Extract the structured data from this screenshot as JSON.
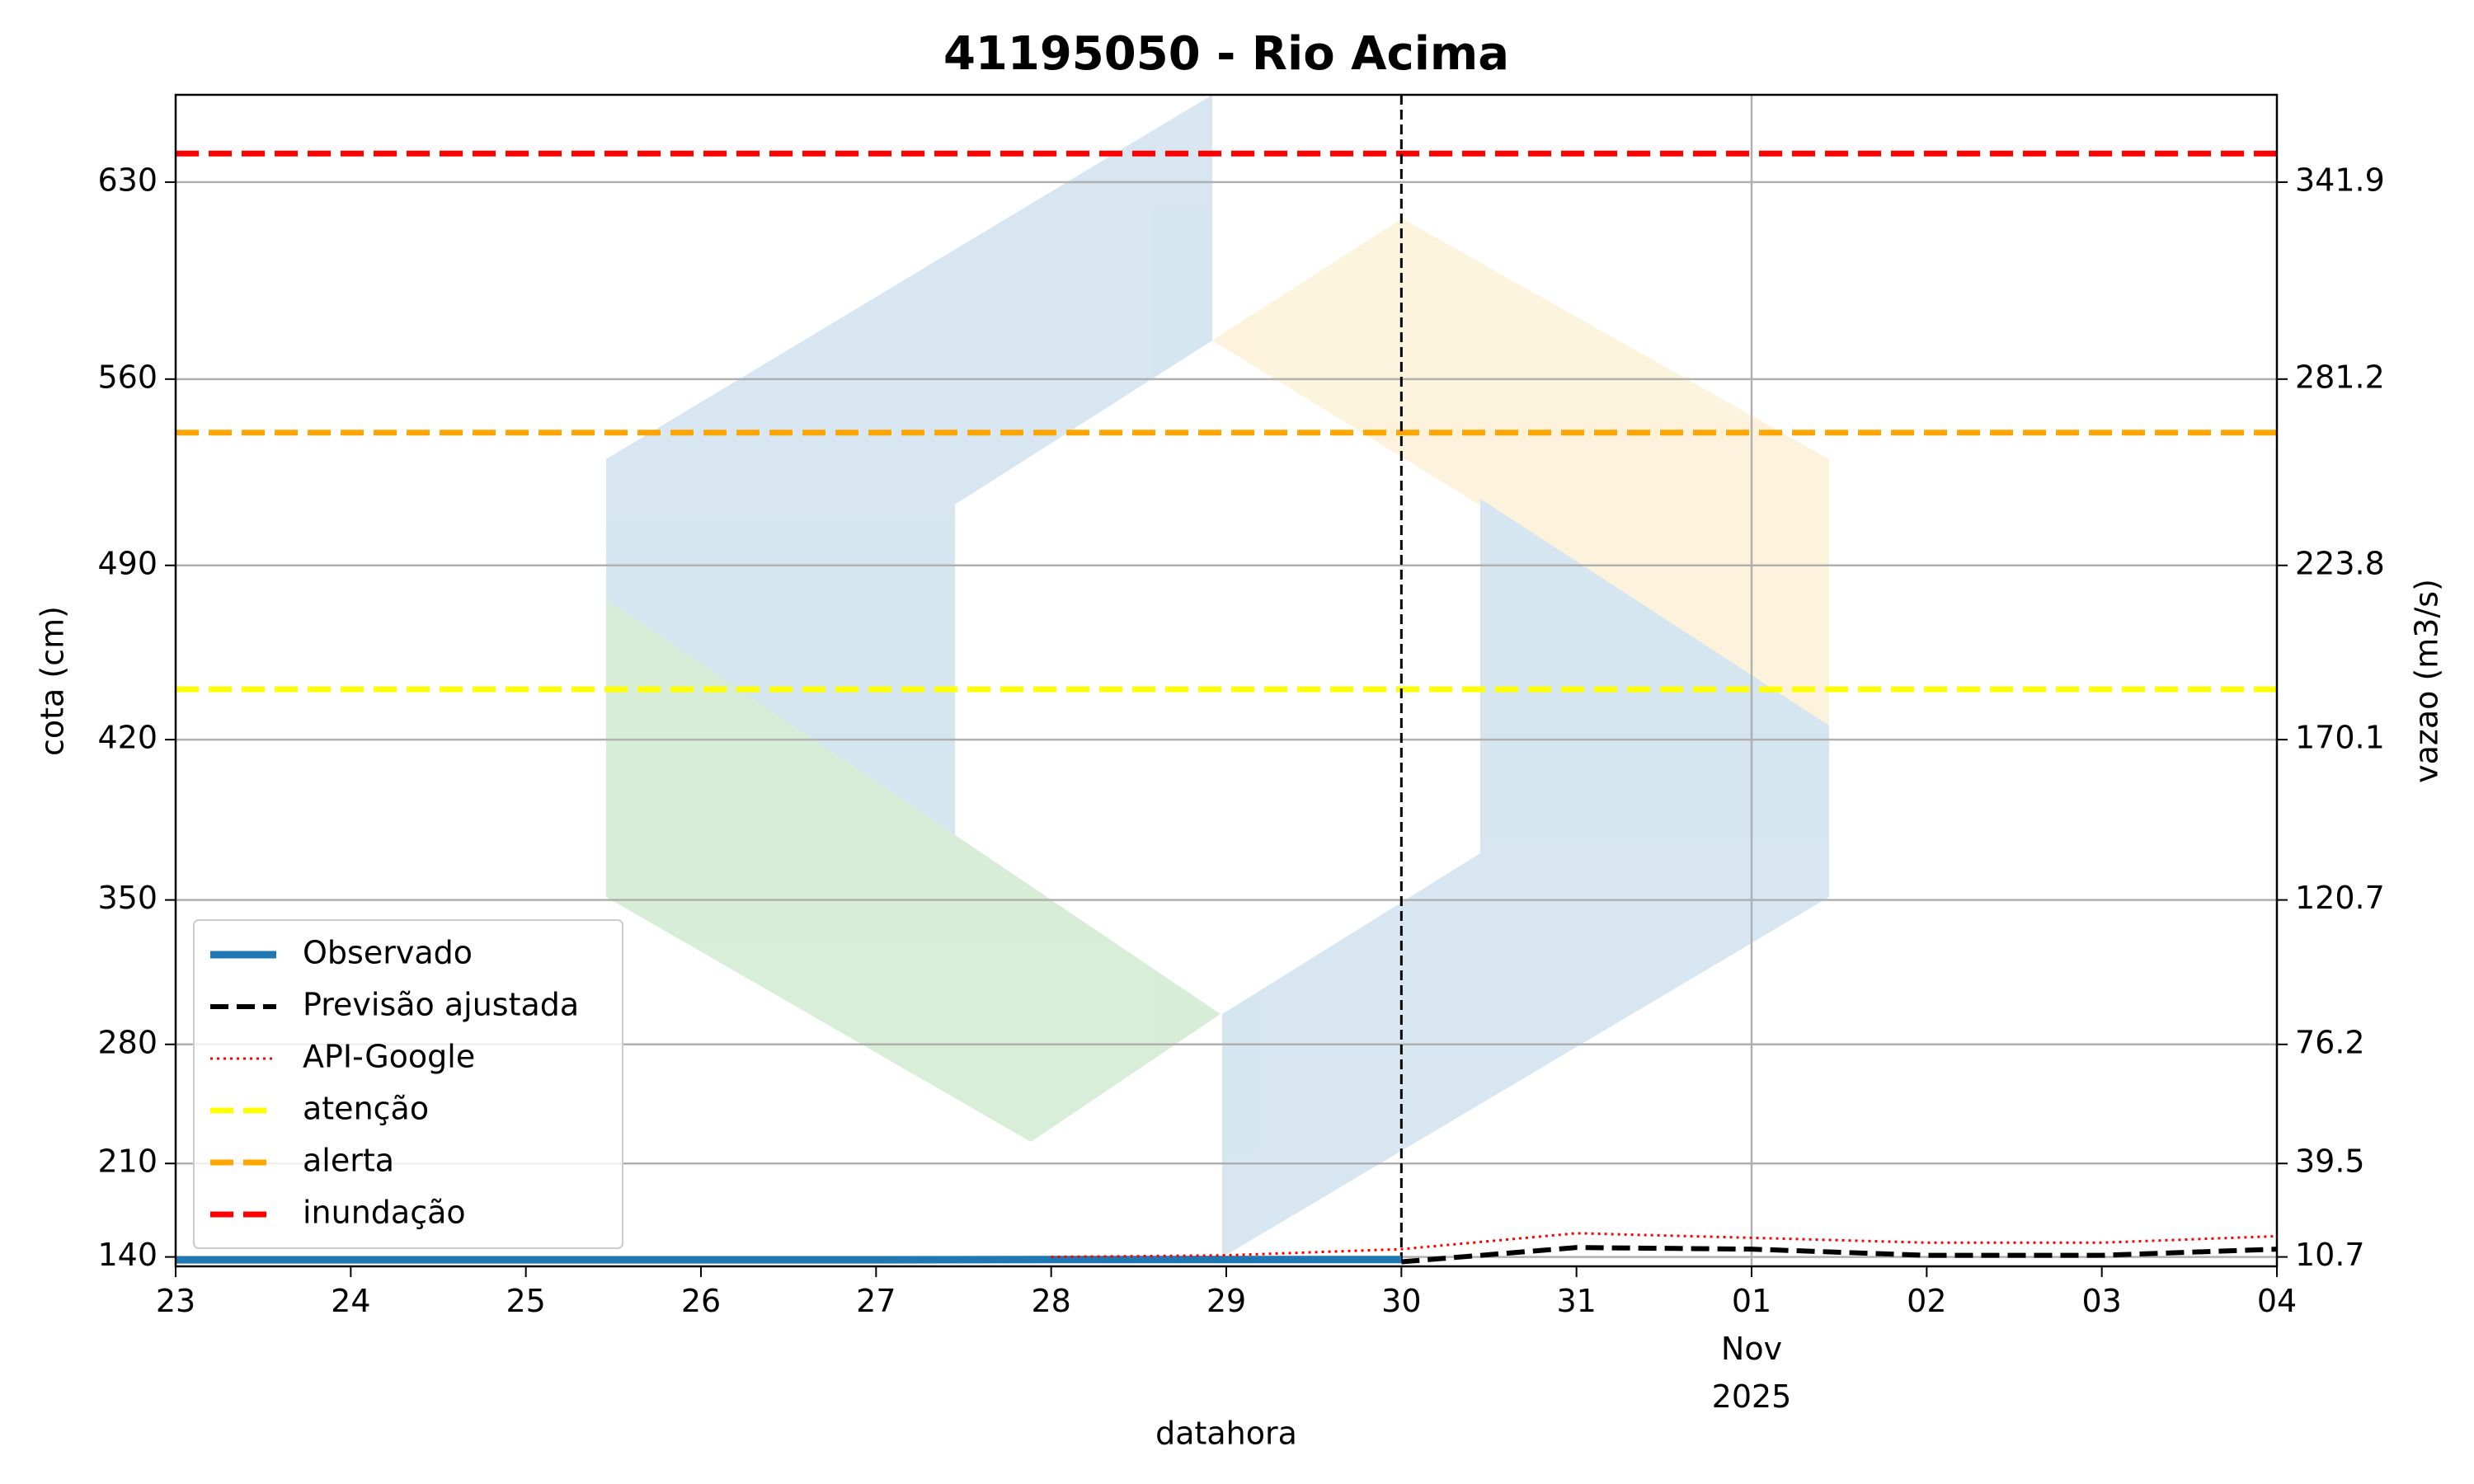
{
  "chart_data": {
    "type": "line",
    "title": "41195050 - Rio Acima",
    "xlabel": "datahora",
    "ylabel": "cota (cm)",
    "y2label": "vazao (m3/s)",
    "xlim": [
      "2025-10-23",
      "2025-11-04"
    ],
    "xticks": [
      {
        "value": "2025-10-23",
        "label": "23"
      },
      {
        "value": "2025-10-24",
        "label": "24"
      },
      {
        "value": "2025-10-25",
        "label": "25"
      },
      {
        "value": "2025-10-26",
        "label": "26"
      },
      {
        "value": "2025-10-27",
        "label": "27"
      },
      {
        "value": "2025-10-28",
        "label": "28"
      },
      {
        "value": "2025-10-29",
        "label": "29"
      },
      {
        "value": "2025-10-30",
        "label": "30"
      },
      {
        "value": "2025-10-31",
        "label": "31"
      },
      {
        "value": "2025-11-01",
        "label": "01\nNov\n2025"
      },
      {
        "value": "2025-11-02",
        "label": "02"
      },
      {
        "value": "2025-11-03",
        "label": "03"
      },
      {
        "value": "2025-11-04",
        "label": "04"
      }
    ],
    "xgrid_at": "2025-11-01",
    "ylim": [
      7.8,
      368.8
    ],
    "yticks": [
      10.7,
      39.5,
      76.2,
      120.7,
      170.1,
      223.8,
      281.2,
      341.9
    ],
    "cota_ticks": [
      140,
      210,
      280,
      350,
      420,
      490,
      560,
      630
    ],
    "grid": true,
    "vline": "2025-10-30",
    "legend": "lower left",
    "series": [
      {
        "name": "Observado",
        "color": "#1f77b4",
        "style": "solid",
        "x": [
          "2025-10-23",
          "2025-10-24",
          "2025-10-25",
          "2025-10-26",
          "2025-10-27",
          "2025-10-28",
          "2025-10-29",
          "2025-10-30"
        ],
        "values": [
          9.8,
          9.8,
          9.8,
          9.8,
          9.8,
          9.9,
          9.9,
          9.9
        ]
      },
      {
        "name": "Previsão ajustada",
        "color": "#000000",
        "style": "dashed",
        "x": [
          "2025-10-30",
          "2025-10-31",
          "2025-11-01",
          "2025-11-02",
          "2025-11-03",
          "2025-11-04"
        ],
        "values": [
          9.2,
          13.6,
          13.1,
          11.2,
          11.2,
          13.1
        ]
      },
      {
        "name": "API-Google",
        "color": "#ff0000",
        "style": "dotted",
        "x": [
          "2025-10-28",
          "2025-10-29",
          "2025-10-30",
          "2025-10-31",
          "2025-11-01",
          "2025-11-02",
          "2025-11-03",
          "2025-11-04"
        ],
        "values": [
          10.7,
          11.2,
          13.1,
          18.0,
          16.6,
          15.1,
          15.1,
          17.1
        ]
      }
    ],
    "thresholds": [
      {
        "name": "atenção",
        "color": "#ffff00",
        "value": 185.6
      },
      {
        "name": "alerta",
        "color": "#ffa500",
        "value": 264.7
      },
      {
        "name": "inundação",
        "color": "#ff0000",
        "value": 350.7
      }
    ]
  }
}
